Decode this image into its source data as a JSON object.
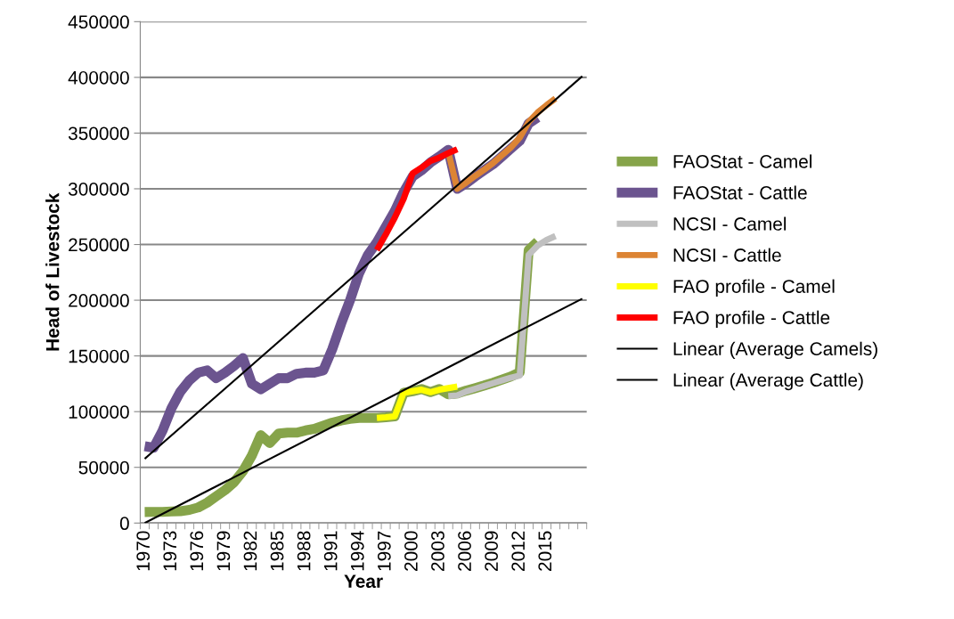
{
  "chart_data": {
    "type": "line",
    "xlabel": "Year",
    "ylabel": "Head of Livestock",
    "categories": [
      "1970",
      null,
      null,
      "1973",
      null,
      null,
      "1976",
      null,
      null,
      "1979",
      null,
      null,
      "1982",
      null,
      null,
      "1985",
      null,
      null,
      "1988",
      null,
      null,
      "1991",
      null,
      null,
      "1994",
      null,
      null,
      "1997",
      null,
      null,
      "2000",
      null,
      null,
      "2003",
      null,
      null,
      "2006",
      null,
      null,
      "2009",
      null,
      null,
      "2012",
      null,
      null,
      "2015",
      null,
      null,
      null,
      null
    ],
    "series": [
      {
        "name": "FAOStat - Camel",
        "color": "#86a44a",
        "values": [
          9900,
          10000,
          10000,
          10400,
          10700,
          11800,
          14000,
          18300,
          24000,
          29600,
          36600,
          46500,
          60600,
          78900,
          71800,
          80300,
          81100,
          81100,
          83100,
          84500,
          87300,
          90100,
          92100,
          93500,
          94400,
          94400,
          94400,
          95000,
          95800,
          116900,
          118300,
          120300,
          117500,
          120300,
          115500,
          116300,
          118900,
          121100,
          123400,
          125900,
          128700,
          131500,
          135200,
          245000,
          252500,
          null,
          null,
          null,
          null,
          null
        ]
      },
      {
        "name": "FAOStat - Cattle",
        "color": "#6b548f",
        "values": [
          69000,
          67600,
          83000,
          103000,
          118000,
          128000,
          135000,
          137000,
          130000,
          135000,
          141000,
          148000,
          125000,
          120000,
          125000,
          130000,
          130000,
          134000,
          135000,
          135000,
          137000,
          156000,
          179000,
          200000,
          224000,
          240700,
          252000,
          266000,
          280000,
          297000,
          311000,
          316600,
          323600,
          329000,
          335000,
          300000,
          305000,
          311000,
          316600,
          322000,
          329000,
          336000,
          343000,
          358700,
          364000,
          null,
          null,
          null,
          null,
          null
        ]
      },
      {
        "name": "NCSI - Camel",
        "color": "#c0c0c0",
        "values": [
          null,
          null,
          null,
          null,
          null,
          null,
          null,
          null,
          null,
          null,
          null,
          null,
          null,
          null,
          null,
          null,
          null,
          null,
          null,
          null,
          null,
          null,
          null,
          null,
          null,
          null,
          null,
          null,
          null,
          null,
          null,
          null,
          null,
          null,
          114000,
          114600,
          118000,
          120500,
          123000,
          125500,
          128000,
          130500,
          132400,
          240700,
          249000,
          254000,
          257600,
          null,
          null,
          null
        ]
      },
      {
        "name": "NCSI - Cattle",
        "color": "#dc8434",
        "values": [
          null,
          null,
          null,
          null,
          null,
          null,
          null,
          null,
          null,
          null,
          null,
          null,
          null,
          null,
          null,
          null,
          null,
          null,
          null,
          null,
          null,
          null,
          null,
          null,
          null,
          null,
          null,
          null,
          null,
          null,
          null,
          null,
          null,
          null,
          333000,
          300000,
          305500,
          311500,
          317000,
          323000,
          330000,
          337000,
          346000,
          360000,
          368500,
          375000,
          381000,
          null,
          null,
          null
        ]
      },
      {
        "name": "FAO profile - Camel",
        "color": "#ffff00",
        "values": [
          null,
          null,
          null,
          null,
          null,
          null,
          null,
          null,
          null,
          null,
          null,
          null,
          null,
          null,
          null,
          null,
          null,
          null,
          null,
          null,
          null,
          null,
          null,
          null,
          null,
          null,
          94400,
          95000,
          95800,
          116900,
          118300,
          119700,
          117500,
          119700,
          121100,
          122500,
          null,
          null,
          null,
          null,
          null,
          null,
          null,
          null,
          null,
          null,
          null,
          null,
          null,
          null
        ]
      },
      {
        "name": "FAO profile - Cattle",
        "color": "#ff0000",
        "values": [
          null,
          null,
          null,
          null,
          null,
          null,
          null,
          null,
          null,
          null,
          null,
          null,
          null,
          null,
          null,
          null,
          null,
          null,
          null,
          null,
          null,
          null,
          null,
          null,
          null,
          null,
          245000,
          259000,
          274000,
          291000,
          313800,
          319000,
          325000,
          328000,
          332000,
          335500,
          null,
          null,
          null,
          null,
          null,
          null,
          null,
          null,
          null,
          null,
          null,
          null,
          null,
          null
        ]
      },
      {
        "name": "Linear (Average Camels)",
        "color": "#000000",
        "values": [
          0,
          null,
          null,
          null,
          null,
          null,
          null,
          null,
          null,
          null,
          null,
          null,
          null,
          null,
          null,
          null,
          null,
          null,
          null,
          null,
          null,
          null,
          null,
          null,
          null,
          null,
          null,
          null,
          null,
          null,
          null,
          null,
          null,
          null,
          null,
          null,
          null,
          null,
          null,
          null,
          null,
          null,
          null,
          null,
          null,
          null,
          null,
          null,
          null,
          201400
        ]
      },
      {
        "name": "Linear (Average Cattle)",
        "color": "#000000",
        "values": [
          57700,
          null,
          null,
          null,
          null,
          null,
          null,
          null,
          null,
          null,
          null,
          null,
          null,
          null,
          null,
          null,
          null,
          null,
          null,
          null,
          null,
          null,
          null,
          null,
          null,
          null,
          null,
          null,
          null,
          null,
          null,
          null,
          null,
          null,
          null,
          null,
          null,
          null,
          null,
          null,
          null,
          null,
          null,
          null,
          null,
          null,
          null,
          null,
          null,
          401000
        ]
      }
    ],
    "ylim": [
      0,
      450000
    ],
    "yticks": [
      0,
      50000,
      100000,
      150000,
      200000,
      250000,
      300000,
      350000,
      400000,
      450000
    ],
    "grid": "y",
    "legend": "right",
    "marker": "none",
    "line_style": "solid"
  }
}
